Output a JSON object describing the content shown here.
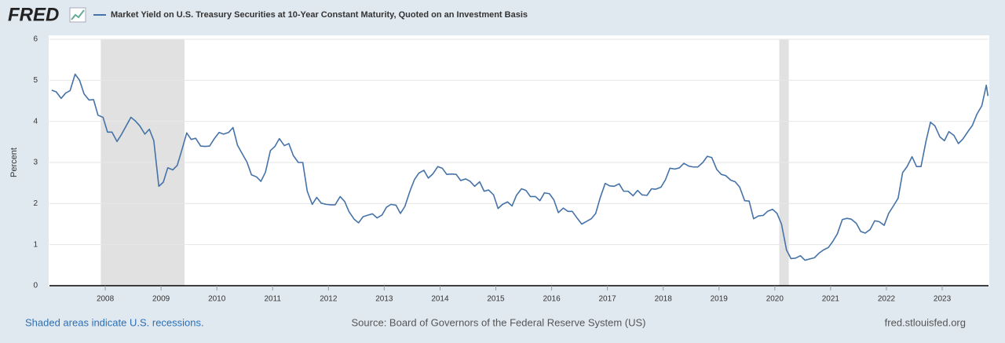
{
  "chart_data": {
    "type": "line",
    "logo": "FRED",
    "ylabel": "Percent",
    "note": "Shaded areas indicate U.S. recessions.",
    "source": "Source: Board of Governors of the Federal Reserve System (US)",
    "credit": "fred.stlouisfed.org",
    "xlim": [
      2007.0,
      2023.83
    ],
    "xticks": [
      2008,
      2009,
      2010,
      2011,
      2012,
      2013,
      2014,
      2015,
      2016,
      2017,
      2018,
      2019,
      2020,
      2021,
      2022,
      2023
    ],
    "ylim": [
      0,
      6
    ],
    "yticks": [
      0,
      1,
      2,
      3,
      4,
      5,
      6
    ],
    "grid": true,
    "recessions": [
      [
        2007.92,
        2009.42
      ],
      [
        2020.08,
        2020.25
      ]
    ],
    "recession_color": "#e1e1e1",
    "x": [
      2007.04,
      2007.12,
      2007.21,
      2007.29,
      2007.37,
      2007.46,
      2007.54,
      2007.62,
      2007.71,
      2007.79,
      2007.87,
      2007.96,
      2008.04,
      2008.12,
      2008.21,
      2008.29,
      2008.37,
      2008.46,
      2008.54,
      2008.62,
      2008.71,
      2008.79,
      2008.87,
      2008.96,
      2009.04,
      2009.12,
      2009.21,
      2009.29,
      2009.37,
      2009.46,
      2009.54,
      2009.62,
      2009.71,
      2009.79,
      2009.87,
      2009.96,
      2010.04,
      2010.12,
      2010.21,
      2010.29,
      2010.37,
      2010.46,
      2010.54,
      2010.62,
      2010.71,
      2010.79,
      2010.87,
      2010.96,
      2011.04,
      2011.12,
      2011.21,
      2011.29,
      2011.37,
      2011.46,
      2011.54,
      2011.62,
      2011.71,
      2011.79,
      2011.87,
      2011.96,
      2012.04,
      2012.12,
      2012.21,
      2012.29,
      2012.37,
      2012.46,
      2012.54,
      2012.62,
      2012.71,
      2012.79,
      2012.87,
      2012.96,
      2013.04,
      2013.12,
      2013.21,
      2013.29,
      2013.37,
      2013.46,
      2013.54,
      2013.62,
      2013.71,
      2013.79,
      2013.87,
      2013.96,
      2014.04,
      2014.12,
      2014.21,
      2014.29,
      2014.37,
      2014.46,
      2014.54,
      2014.62,
      2014.71,
      2014.79,
      2014.87,
      2014.96,
      2015.04,
      2015.12,
      2015.21,
      2015.29,
      2015.37,
      2015.46,
      2015.54,
      2015.62,
      2015.71,
      2015.79,
      2015.87,
      2015.96,
      2016.04,
      2016.12,
      2016.21,
      2016.29,
      2016.37,
      2016.46,
      2016.54,
      2016.62,
      2016.71,
      2016.79,
      2016.87,
      2016.96,
      2017.04,
      2017.12,
      2017.21,
      2017.29,
      2017.37,
      2017.46,
      2017.54,
      2017.62,
      2017.71,
      2017.79,
      2017.87,
      2017.96,
      2018.04,
      2018.12,
      2018.21,
      2018.29,
      2018.37,
      2018.46,
      2018.54,
      2018.62,
      2018.71,
      2018.79,
      2018.87,
      2018.96,
      2019.04,
      2019.12,
      2019.21,
      2019.29,
      2019.37,
      2019.46,
      2019.54,
      2019.62,
      2019.71,
      2019.79,
      2019.87,
      2019.96,
      2020.04,
      2020.12,
      2020.21,
      2020.29,
      2020.37,
      2020.46,
      2020.54,
      2020.62,
      2020.71,
      2020.79,
      2020.87,
      2020.96,
      2021.04,
      2021.12,
      2021.21,
      2021.29,
      2021.37,
      2021.46,
      2021.54,
      2021.62,
      2021.71,
      2021.79,
      2021.87,
      2021.96,
      2022.04,
      2022.12,
      2022.21,
      2022.29,
      2022.37,
      2022.46,
      2022.54,
      2022.62,
      2022.71,
      2022.79,
      2022.87,
      2022.96,
      2023.04,
      2023.12,
      2023.21,
      2023.29,
      2023.37,
      2023.46,
      2023.54,
      2023.62,
      2023.71,
      2023.79,
      2023.82
    ],
    "series": [
      {
        "name": "Market Yield on U.S. Treasury Securities at 10-Year Constant Maturity, Quoted on an Investment Basis",
        "color": "#4572a7",
        "values": [
          4.76,
          4.72,
          4.56,
          4.69,
          4.75,
          5.15,
          5.0,
          4.67,
          4.52,
          4.53,
          4.15,
          4.1,
          3.74,
          3.74,
          3.51,
          3.68,
          3.88,
          4.1,
          4.01,
          3.89,
          3.69,
          3.81,
          3.53,
          2.42,
          2.52,
          2.87,
          2.82,
          2.93,
          3.29,
          3.72,
          3.56,
          3.59,
          3.4,
          3.39,
          3.4,
          3.59,
          3.73,
          3.69,
          3.73,
          3.85,
          3.42,
          3.2,
          3.01,
          2.7,
          2.65,
          2.54,
          2.76,
          3.29,
          3.39,
          3.58,
          3.41,
          3.46,
          3.17,
          3.0,
          3.0,
          2.3,
          1.98,
          2.15,
          2.01,
          1.98,
          1.97,
          1.97,
          2.17,
          2.05,
          1.8,
          1.62,
          1.53,
          1.68,
          1.72,
          1.75,
          1.65,
          1.72,
          1.91,
          1.98,
          1.96,
          1.76,
          1.93,
          2.3,
          2.58,
          2.74,
          2.81,
          2.62,
          2.72,
          2.9,
          2.86,
          2.71,
          2.72,
          2.71,
          2.56,
          2.6,
          2.54,
          2.42,
          2.53,
          2.3,
          2.33,
          2.21,
          1.88,
          1.98,
          2.04,
          1.94,
          2.2,
          2.36,
          2.32,
          2.17,
          2.17,
          2.07,
          2.26,
          2.24,
          2.09,
          1.78,
          1.89,
          1.81,
          1.81,
          1.64,
          1.5,
          1.56,
          1.63,
          1.76,
          2.14,
          2.49,
          2.43,
          2.42,
          2.48,
          2.3,
          2.3,
          2.19,
          2.32,
          2.21,
          2.2,
          2.36,
          2.35,
          2.4,
          2.58,
          2.86,
          2.84,
          2.87,
          2.98,
          2.91,
          2.89,
          2.89,
          3.0,
          3.15,
          3.12,
          2.83,
          2.71,
          2.68,
          2.57,
          2.53,
          2.4,
          2.07,
          2.06,
          1.63,
          1.7,
          1.71,
          1.81,
          1.86,
          1.76,
          1.5,
          0.87,
          0.66,
          0.67,
          0.73,
          0.62,
          0.65,
          0.68,
          0.79,
          0.87,
          0.93,
          1.08,
          1.26,
          1.61,
          1.64,
          1.62,
          1.52,
          1.32,
          1.28,
          1.37,
          1.58,
          1.56,
          1.47,
          1.76,
          1.93,
          2.13,
          2.75,
          2.9,
          3.14,
          2.9,
          2.9,
          3.52,
          3.98,
          3.89,
          3.62,
          3.53,
          3.75,
          3.66,
          3.46,
          3.57,
          3.75,
          3.9,
          4.17,
          4.38,
          4.88,
          4.62
        ]
      }
    ]
  }
}
